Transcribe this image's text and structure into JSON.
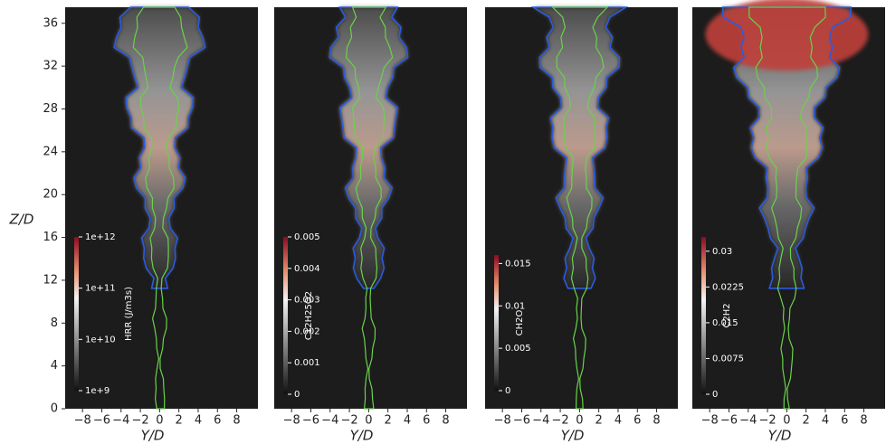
{
  "chart_data": [
    {
      "type": "field",
      "xlabel": "Y/D",
      "ylabel": "Z/D",
      "xlim": [
        -9.8,
        10.2
      ],
      "xticks": [
        {
          "value": -8,
          "label": "−8"
        },
        {
          "value": -6,
          "label": "−6"
        },
        {
          "value": -4,
          "label": "−4"
        },
        {
          "value": -2,
          "label": "−2"
        },
        0,
        2,
        4,
        6,
        8
      ],
      "ylim": [
        0,
        37.5
      ],
      "yticks": [
        0,
        4,
        8,
        12,
        16,
        20,
        24,
        28,
        32,
        36
      ],
      "colorbar": {
        "label": "HRR (J/m3s)",
        "log": true,
        "lim": [
          1000000000,
          1000000000000
        ],
        "ticks": [
          {
            "value": 1000000000,
            "label": "1e+9"
          },
          {
            "value": 10000000000,
            "label": "1e+10"
          },
          {
            "value": 100000000000,
            "label": "1e+11"
          },
          {
            "value": 1000000000000,
            "label": "1e+12"
          }
        ]
      }
    },
    {
      "type": "field",
      "xlabel": "Y/D",
      "xlim": [
        -9.8,
        10.2
      ],
      "xticks": [
        {
          "value": -8,
          "label": "−8"
        },
        {
          "value": -6,
          "label": "−6"
        },
        {
          "value": -4,
          "label": "−4"
        },
        {
          "value": -2,
          "label": "−2"
        },
        0,
        2,
        4,
        6,
        8
      ],
      "colorbar": {
        "label": "C12H25O2",
        "log": false,
        "lim": [
          0,
          0.005
        ],
        "ticks": [
          0,
          0.001,
          0.002,
          0.003,
          0.004,
          0.005
        ]
      }
    },
    {
      "type": "field",
      "xlabel": "Y/D",
      "xlim": [
        -9.8,
        10.2
      ],
      "xticks": [
        {
          "value": -8,
          "label": "−8"
        },
        {
          "value": -6,
          "label": "−6"
        },
        {
          "value": -4,
          "label": "−4"
        },
        {
          "value": -2,
          "label": "−2"
        },
        0,
        2,
        4,
        6,
        8
      ],
      "colorbar": {
        "label": "CH2O",
        "log": false,
        "lim": [
          0,
          0.016
        ],
        "ticks": [
          0,
          0.005,
          0.01,
          0.015
        ]
      }
    },
    {
      "type": "field",
      "xlabel": "Y/D",
      "xlim": [
        -9.8,
        10.2
      ],
      "xticks": [
        {
          "value": -8,
          "label": "−8"
        },
        {
          "value": -6,
          "label": "−6"
        },
        {
          "value": -4,
          "label": "−4"
        },
        {
          "value": -2,
          "label": "−2"
        },
        0,
        2,
        4,
        6,
        8
      ],
      "colorbar": {
        "label": "C2H2",
        "log": false,
        "lim": [
          0,
          0.033
        ],
        "ticks": [
          0,
          0.0075,
          0.015,
          0.0225,
          0.03
        ]
      }
    }
  ]
}
